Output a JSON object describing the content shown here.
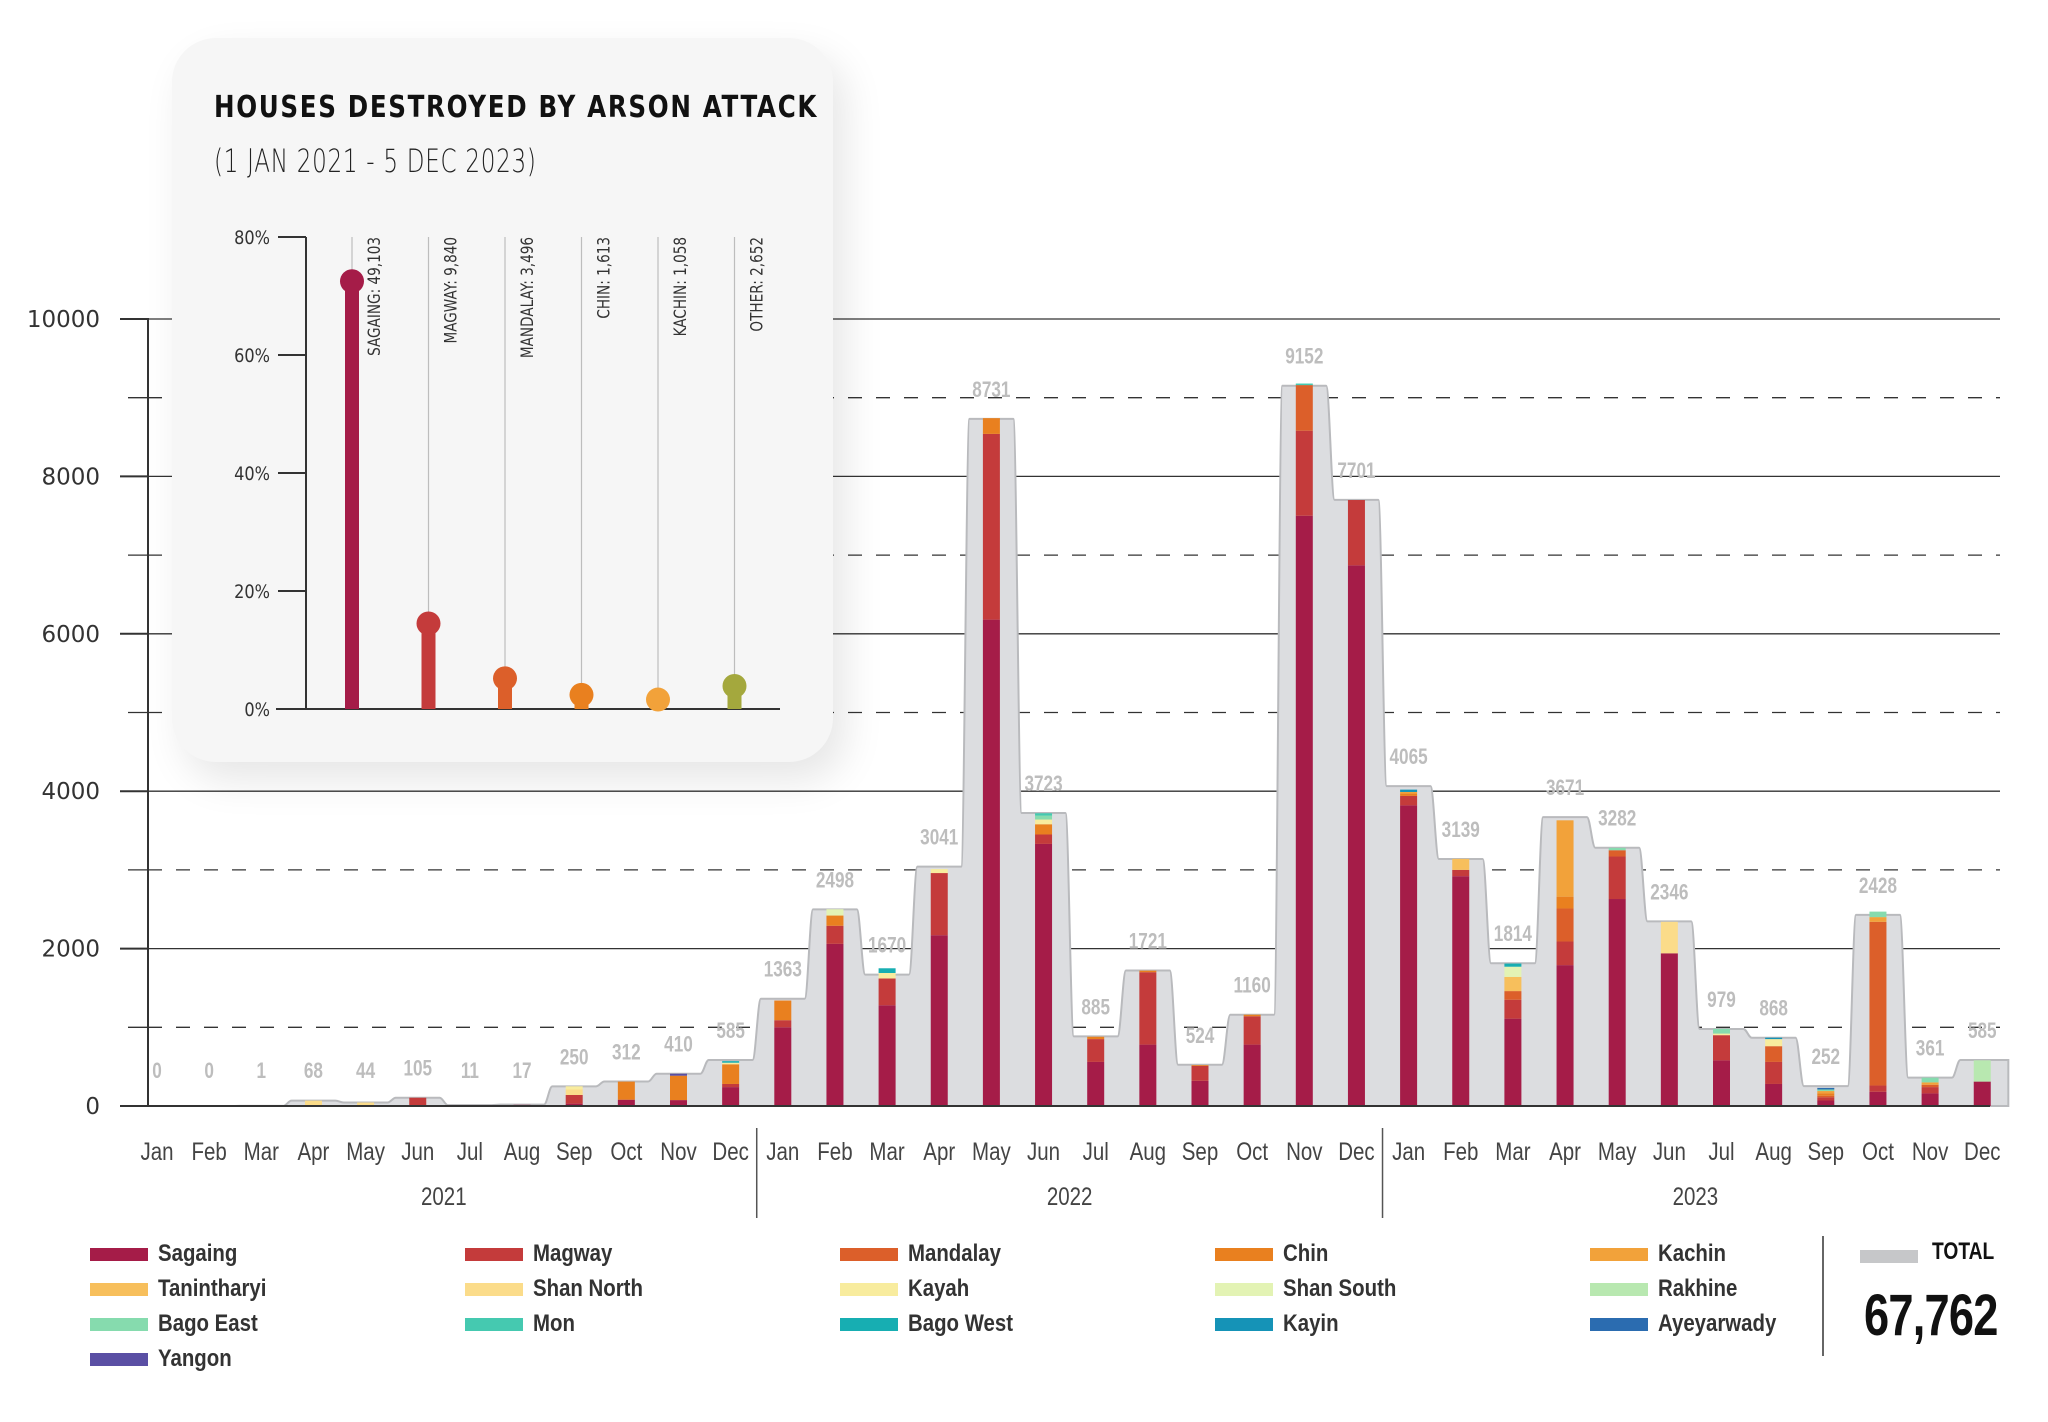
{
  "chart_data": [
    {
      "type": "bar",
      "stacked": true,
      "title": "Houses destroyed by arson attack (monthly, by region)",
      "xlabel": "",
      "ylabel": "",
      "ylim": [
        0,
        10000
      ],
      "yticks": [
        0,
        2000,
        4000,
        6000,
        8000,
        10000
      ],
      "grid": true,
      "years": [
        "2021",
        "2022",
        "2023"
      ],
      "months": [
        "Jan",
        "Feb",
        "Mar",
        "Apr",
        "May",
        "Jun",
        "Jul",
        "Aug",
        "Sep",
        "Oct",
        "Nov",
        "Dec"
      ],
      "totals": [
        0,
        0,
        1,
        68,
        44,
        105,
        11,
        17,
        250,
        312,
        410,
        585,
        1363,
        2498,
        1670,
        3041,
        8731,
        3723,
        885,
        1721,
        524,
        1160,
        9152,
        7701,
        4065,
        3139,
        1814,
        3671,
        3282,
        2346,
        979,
        868,
        252,
        2428,
        361,
        585
      ],
      "series": [
        {
          "name": "Sagaing",
          "color": "#a51c48",
          "values": [
            0,
            0,
            0,
            0,
            0,
            0,
            0,
            15,
            30,
            80,
            75,
            240,
            1000,
            2060,
            1280,
            2170,
            6180,
            3330,
            560,
            780,
            320,
            780,
            7500,
            6870,
            3820,
            2920,
            1110,
            1790,
            2630,
            1940,
            580,
            280,
            70,
            180,
            160,
            310
          ]
        },
        {
          "name": "Magway",
          "color": "#c43b3b",
          "values": [
            0,
            0,
            0,
            0,
            0,
            105,
            0,
            0,
            110,
            0,
            0,
            40,
            90,
            230,
            340,
            790,
            2360,
            120,
            290,
            920,
            190,
            360,
            1080,
            830,
            120,
            80,
            240,
            300,
            540,
            0,
            320,
            280,
            40,
            80,
            80,
            0
          ]
        },
        {
          "name": "Mandalay",
          "color": "#dc5f2a",
          "values": [
            0,
            0,
            0,
            0,
            0,
            0,
            0,
            0,
            0,
            0,
            0,
            0,
            0,
            0,
            0,
            0,
            0,
            0,
            0,
            0,
            0,
            0,
            580,
            0,
            0,
            0,
            110,
            420,
            80,
            0,
            0,
            200,
            20,
            2080,
            30,
            0
          ]
        },
        {
          "name": "Chin",
          "color": "#e9801f",
          "values": [
            0,
            0,
            0,
            0,
            0,
            0,
            0,
            0,
            0,
            230,
            310,
            250,
            250,
            130,
            0,
            0,
            200,
            130,
            30,
            20,
            10,
            20,
            0,
            0,
            30,
            0,
            0,
            150,
            0,
            0,
            0,
            0,
            30,
            0,
            0,
            0
          ]
        },
        {
          "name": "Kachin",
          "color": "#f2a23a",
          "values": [
            0,
            0,
            0,
            0,
            0,
            0,
            0,
            0,
            0,
            0,
            0,
            0,
            0,
            0,
            0,
            0,
            0,
            0,
            0,
            0,
            0,
            0,
            0,
            0,
            20,
            0,
            0,
            970,
            0,
            0,
            0,
            0,
            30,
            60,
            30,
            0
          ]
        },
        {
          "name": "Tanintharyi",
          "color": "#f7bf5c",
          "values": [
            0,
            0,
            0,
            0,
            0,
            0,
            0,
            0,
            0,
            0,
            0,
            0,
            0,
            0,
            0,
            0,
            0,
            0,
            0,
            0,
            0,
            0,
            0,
            0,
            0,
            140,
            180,
            0,
            0,
            0,
            0,
            0,
            0,
            0,
            0,
            0
          ]
        },
        {
          "name": "Shan North",
          "color": "#fbdc8a",
          "values": [
            0,
            0,
            1,
            68,
            44,
            0,
            0,
            0,
            70,
            0,
            0,
            0,
            0,
            0,
            0,
            0,
            0,
            0,
            0,
            0,
            0,
            0,
            0,
            0,
            0,
            0,
            0,
            0,
            0,
            400,
            0,
            0,
            0,
            0,
            0,
            0
          ]
        },
        {
          "name": "Kayah",
          "color": "#f8ec9e",
          "values": [
            0,
            0,
            0,
            0,
            0,
            0,
            0,
            0,
            40,
            0,
            0,
            20,
            0,
            0,
            70,
            50,
            0,
            60,
            0,
            0,
            0,
            0,
            0,
            0,
            0,
            0,
            0,
            0,
            0,
            0,
            20,
            90,
            0,
            0,
            0,
            0
          ]
        },
        {
          "name": "Shan South",
          "color": "#e3f3b4",
          "values": [
            0,
            0,
            0,
            0,
            0,
            0,
            0,
            0,
            0,
            0,
            0,
            0,
            0,
            80,
            0,
            0,
            0,
            0,
            0,
            0,
            0,
            0,
            0,
            0,
            0,
            0,
            130,
            0,
            0,
            0,
            0,
            0,
            0,
            0,
            0,
            0
          ]
        },
        {
          "name": "Rakhine",
          "color": "#b8e8b0",
          "values": [
            0,
            0,
            0,
            0,
            0,
            0,
            0,
            0,
            0,
            0,
            0,
            0,
            0,
            0,
            0,
            0,
            0,
            0,
            0,
            0,
            0,
            0,
            0,
            0,
            0,
            0,
            0,
            0,
            0,
            0,
            0,
            0,
            0,
            0,
            0,
            270
          ]
        },
        {
          "name": "Bago East",
          "color": "#86dbae",
          "values": [
            0,
            0,
            0,
            0,
            0,
            0,
            0,
            0,
            0,
            0,
            0,
            0,
            0,
            0,
            0,
            0,
            0,
            50,
            0,
            0,
            0,
            0,
            0,
            0,
            0,
            0,
            0,
            0,
            30,
            0,
            60,
            0,
            20,
            70,
            60,
            0
          ]
        },
        {
          "name": "Mon",
          "color": "#45c9b0",
          "values": [
            0,
            0,
            0,
            0,
            0,
            0,
            0,
            0,
            0,
            0,
            0,
            0,
            0,
            0,
            0,
            0,
            0,
            30,
            0,
            0,
            0,
            0,
            20,
            0,
            0,
            0,
            0,
            0,
            0,
            0,
            0,
            0,
            0,
            0,
            0,
            0
          ]
        },
        {
          "name": "Bago West",
          "color": "#17aeb2",
          "values": [
            0,
            0,
            0,
            0,
            0,
            0,
            11,
            0,
            0,
            0,
            0,
            20,
            0,
            0,
            60,
            0,
            0,
            0,
            0,
            0,
            0,
            0,
            0,
            0,
            0,
            0,
            40,
            0,
            0,
            0,
            0,
            0,
            0,
            0,
            0,
            0
          ]
        },
        {
          "name": "Kayin",
          "color": "#1593b7",
          "values": [
            0,
            0,
            0,
            0,
            0,
            0,
            0,
            0,
            0,
            0,
            0,
            0,
            0,
            0,
            0,
            0,
            0,
            0,
            0,
            0,
            0,
            0,
            0,
            0,
            30,
            0,
            0,
            0,
            0,
            0,
            0,
            18,
            0,
            0,
            0,
            0
          ]
        },
        {
          "name": "Ayeyarwady",
          "color": "#2b6cb0",
          "values": [
            0,
            0,
            0,
            0,
            0,
            0,
            0,
            0,
            0,
            0,
            0,
            0,
            0,
            0,
            0,
            0,
            0,
            0,
            0,
            0,
            0,
            0,
            0,
            0,
            0,
            0,
            0,
            0,
            0,
            0,
            0,
            0,
            20,
            0,
            0,
            0
          ]
        },
        {
          "name": "Yangon",
          "color": "#5a4fa4",
          "values": [
            0,
            0,
            0,
            0,
            0,
            0,
            0,
            0,
            0,
            0,
            25,
            0,
            0,
            0,
            0,
            0,
            0,
            0,
            0,
            0,
            0,
            0,
            0,
            0,
            0,
            0,
            0,
            0,
            0,
            0,
            0,
            0,
            0,
            0,
            0,
            0
          ]
        }
      ],
      "total_series": {
        "name": "TOTAL",
        "color": "#c6c7c9"
      },
      "legend_position": "bottom"
    },
    {
      "type": "lollipop",
      "title": "HOUSES DESTROYED BY ARSON ATTACK",
      "subtitle": "(1 JAN 2021 - 5 DEC 2023)",
      "ylim": [
        0,
        80
      ],
      "yticks": [
        "0%",
        "20%",
        "40%",
        "60%",
        "80%"
      ],
      "categories": [
        "SAGAING",
        "MAGWAY",
        "MANDALAY",
        "CHIN",
        "KACHIN",
        "OTHER"
      ],
      "counts": [
        49103,
        9840,
        3496,
        1613,
        1058,
        2652
      ],
      "labels": [
        "SAGAING: 49,103",
        "MAGWAY: 9,840",
        "MANDALAY: 3,496",
        "CHIN: 1,613",
        "KACHIN: 1,058",
        "OTHER: 2,652"
      ],
      "values_percent": [
        72.5,
        14.5,
        5.2,
        2.4,
        1.6,
        3.9
      ],
      "colors": [
        "#a51c48",
        "#c43b3b",
        "#dc5f2a",
        "#e9801f",
        "#f2a23a",
        "#a4a83d"
      ]
    }
  ],
  "card": {
    "title": "HOUSES DESTROYED BY ARSON ATTACK",
    "subtitle": "(1 JAN 2021 - 5 DEC 2023)"
  },
  "legend": {
    "items": [
      "Sagaing",
      "Magway",
      "Mandalay",
      "Chin",
      "Kachin",
      "Tanintharyi",
      "Shan North",
      "Kayah",
      "Shan South",
      "Rakhine",
      "Bago East",
      "Mon",
      "Bago West",
      "Kayin",
      "Ayeyarwady",
      "Yangon"
    ],
    "total_label": "TOTAL",
    "total_value": "67,762"
  }
}
